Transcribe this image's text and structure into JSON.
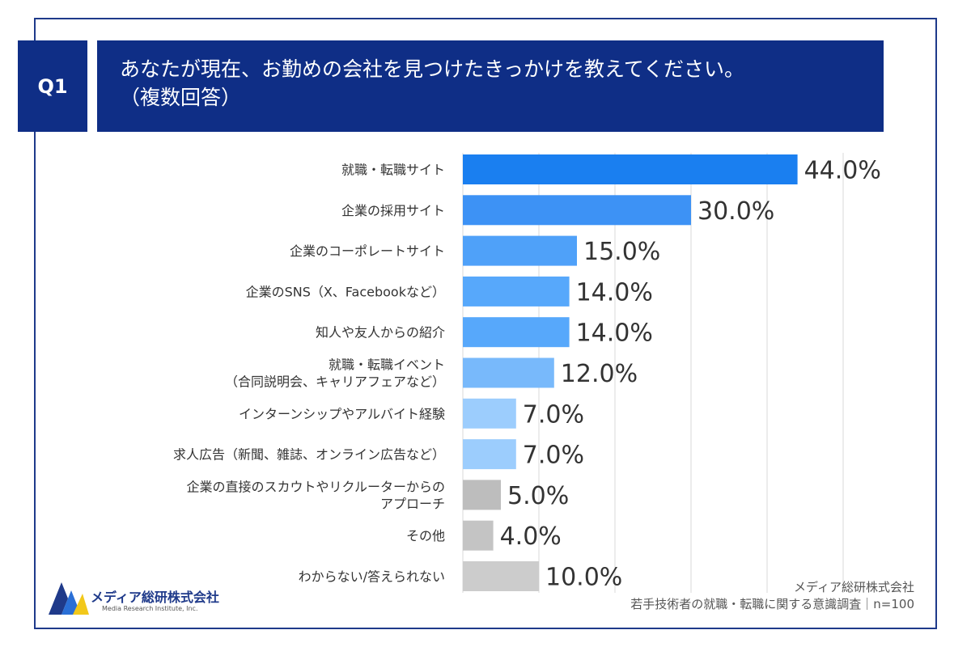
{
  "question": {
    "badge": "Q1",
    "title_line1": "あなたが現在、お勤めの会社を見つけたきっかけを教えてください。",
    "title_line2": "（複数回答）"
  },
  "chart_data": {
    "type": "bar",
    "orientation": "horizontal",
    "xlim": [
      0,
      50
    ],
    "grid": true,
    "categories": [
      [
        "就職・転職サイト"
      ],
      [
        "企業の採用サイト"
      ],
      [
        "企業のコーポレートサイト"
      ],
      [
        "企業のSNS（X、Facebookなど）"
      ],
      [
        "知人や友人からの紹介"
      ],
      [
        "就職・転職イベント",
        "（合同説明会、キャリアフェアなど）"
      ],
      [
        "インターンシップやアルバイト経験"
      ],
      [
        "求人広告（新聞、雑誌、オンライン広告など）"
      ],
      [
        "企業の直接のスカウトやリクルーターからの",
        "アプローチ"
      ],
      [
        "その他"
      ],
      [
        "わからない/答えられない"
      ]
    ],
    "values": [
      44.0,
      30.0,
      15.0,
      14.0,
      14.0,
      12.0,
      7.0,
      7.0,
      5.0,
      4.0,
      10.0
    ],
    "value_labels": [
      "44.0%",
      "30.0%",
      "15.0%",
      "14.0%",
      "14.0%",
      "12.0%",
      "7.0%",
      "7.0%",
      "5.0%",
      "4.0%",
      "10.0%"
    ],
    "colors": [
      "#1a7ff0",
      "#3d92f5",
      "#4fa1f9",
      "#57a8fb",
      "#57a8fb",
      "#78b9fb",
      "#9ccdfd",
      "#9ccdfd",
      "#bdbdbd",
      "#c4c4c4",
      "#cccccc"
    ]
  },
  "logo": {
    "name": "メディア総研株式会社",
    "sub": "Media Research Institute, Inc."
  },
  "source": {
    "line1": "メディア総研株式会社",
    "line2": "若手技術者の就職・転職に関する意識調査｜n=100"
  },
  "colors": {
    "header_bg": "#0f2e86",
    "frame": "#1f3a8a"
  }
}
